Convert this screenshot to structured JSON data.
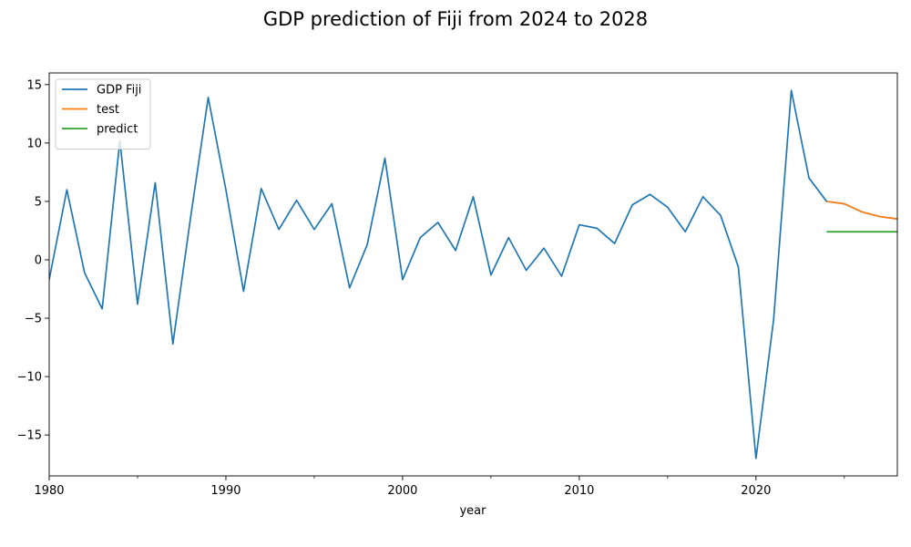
{
  "chart_data": {
    "type": "line",
    "title": "GDP prediction of Fiji from 2024 to 2028",
    "xlabel": "year",
    "ylabel": "",
    "xlim": [
      1980,
      2028
    ],
    "ylim": [
      -18.5,
      16
    ],
    "x_major_ticks": [
      1980,
      1990,
      2000,
      2010,
      2020
    ],
    "x_minor_ticks": [
      1985,
      1995,
      2005,
      2015,
      2025
    ],
    "y_ticks": [
      -15,
      -10,
      -5,
      0,
      5,
      10,
      15
    ],
    "grid": false,
    "legend_position": "upper-left",
    "series": [
      {
        "name": "GDP Fiji",
        "color": "#1f77b4",
        "x": [
          1980,
          1981,
          1982,
          1983,
          1984,
          1985,
          1986,
          1987,
          1988,
          1989,
          1990,
          1991,
          1992,
          1993,
          1994,
          1995,
          1996,
          1997,
          1998,
          1999,
          2000,
          2001,
          2002,
          2003,
          2004,
          2005,
          2006,
          2007,
          2008,
          2009,
          2010,
          2011,
          2012,
          2013,
          2014,
          2015,
          2016,
          2017,
          2018,
          2019,
          2020,
          2021,
          2022,
          2023,
          2024,
          2025,
          2026,
          2027,
          2028
        ],
        "values": [
          -1.7,
          6.0,
          -1.1,
          -4.2,
          10.2,
          -3.8,
          6.6,
          -7.2,
          3.6,
          13.9,
          6.0,
          -2.7,
          6.1,
          2.6,
          5.1,
          2.6,
          4.8,
          -2.4,
          1.3,
          8.7,
          -1.7,
          1.9,
          3.2,
          0.8,
          5.4,
          -1.3,
          1.9,
          -0.9,
          1.0,
          -1.4,
          3.0,
          2.7,
          1.4,
          4.7,
          5.6,
          4.5,
          2.4,
          5.4,
          3.8,
          -0.6,
          -17.0,
          -5.1,
          14.5,
          7.0,
          5.0,
          4.8,
          4.1,
          3.7,
          3.5
        ]
      },
      {
        "name": "test",
        "color": "#ff7f0e",
        "x": [
          2024,
          2025,
          2026,
          2027,
          2028
        ],
        "values": [
          5.0,
          4.8,
          4.1,
          3.7,
          3.5
        ]
      },
      {
        "name": "predict",
        "color": "#2ca02c",
        "x": [
          2024,
          2025,
          2026,
          2027,
          2028
        ],
        "values": [
          2.4,
          2.4,
          2.4,
          2.4,
          2.4
        ]
      }
    ]
  }
}
